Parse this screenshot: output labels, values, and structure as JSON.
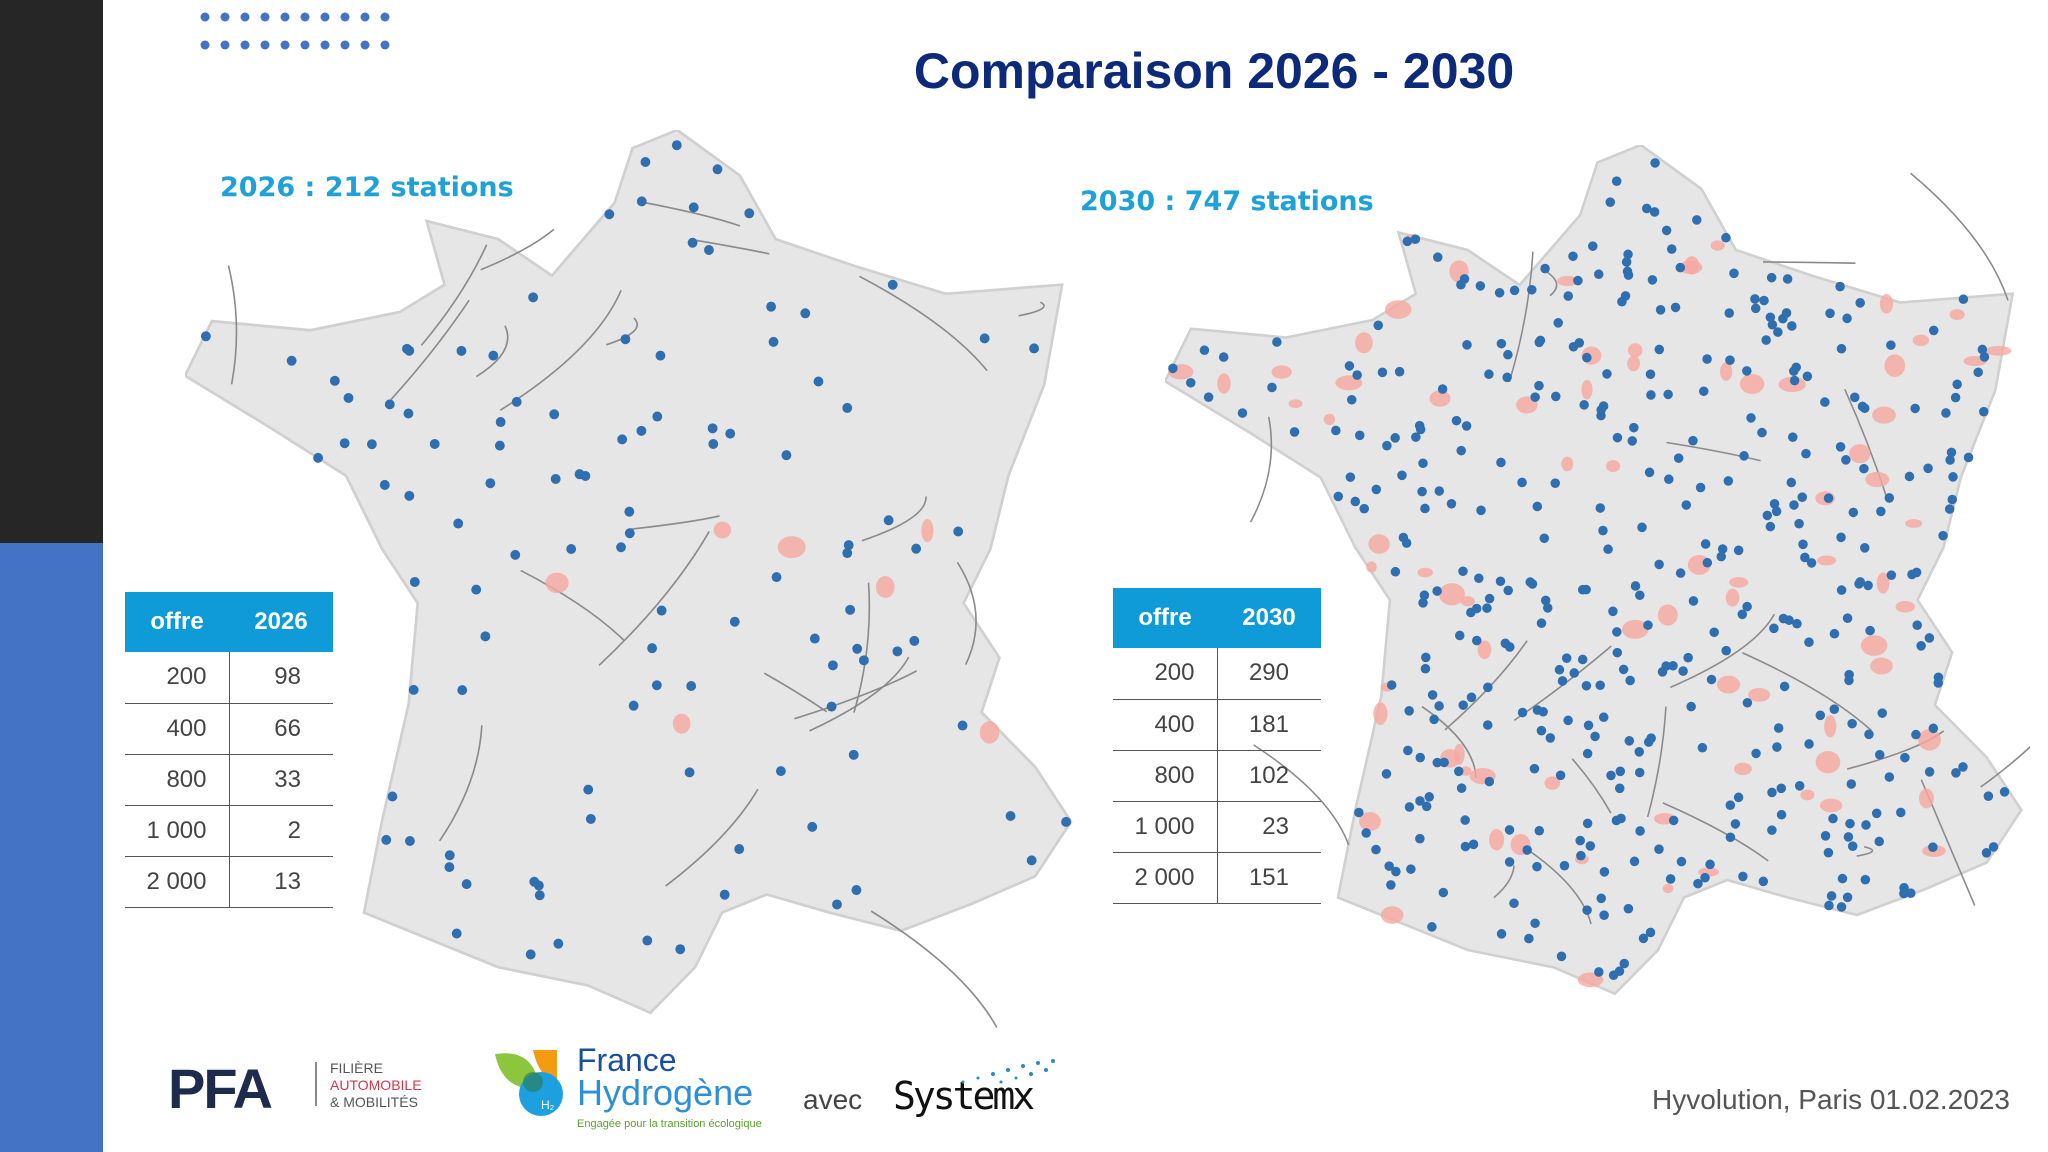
{
  "title": "Comparaison 2026 - 2030",
  "map_2026": {
    "label": "2026 : 212 stations"
  },
  "map_2030": {
    "label": "2030 : 747 stations"
  },
  "table_2026": {
    "headers": [
      "offre",
      "2026"
    ],
    "rows": [
      [
        "200",
        "98"
      ],
      [
        "400",
        "66"
      ],
      [
        "800",
        "33"
      ],
      [
        "1 000",
        "2"
      ],
      [
        "2 000",
        "13"
      ]
    ]
  },
  "table_2030": {
    "headers": [
      "offre",
      "2030"
    ],
    "rows": [
      [
        "200",
        "290"
      ],
      [
        "400",
        "181"
      ],
      [
        "800",
        "102"
      ],
      [
        "1 000",
        "23"
      ],
      [
        "2 000",
        "151"
      ]
    ]
  },
  "logos": {
    "pfa": {
      "mark": "PFA",
      "line1": "FILIÈRE",
      "line2": "AUTOMOBILE",
      "line3": "& MOBILITÉS"
    },
    "france_hydrogene": {
      "line1": "France",
      "line2": "Hydrogène",
      "tagline": "Engagée pour la transition écologique",
      "badge": "H₂"
    },
    "systemx": {
      "name": "Systemx"
    }
  },
  "avec": "avec",
  "footer": "Hyvolution, Paris 01.02.2023",
  "colors": {
    "station": "#2f6fb0",
    "navy": "#0d2a7a",
    "accent": "#1ea0d8",
    "region": "#e040e0"
  }
}
